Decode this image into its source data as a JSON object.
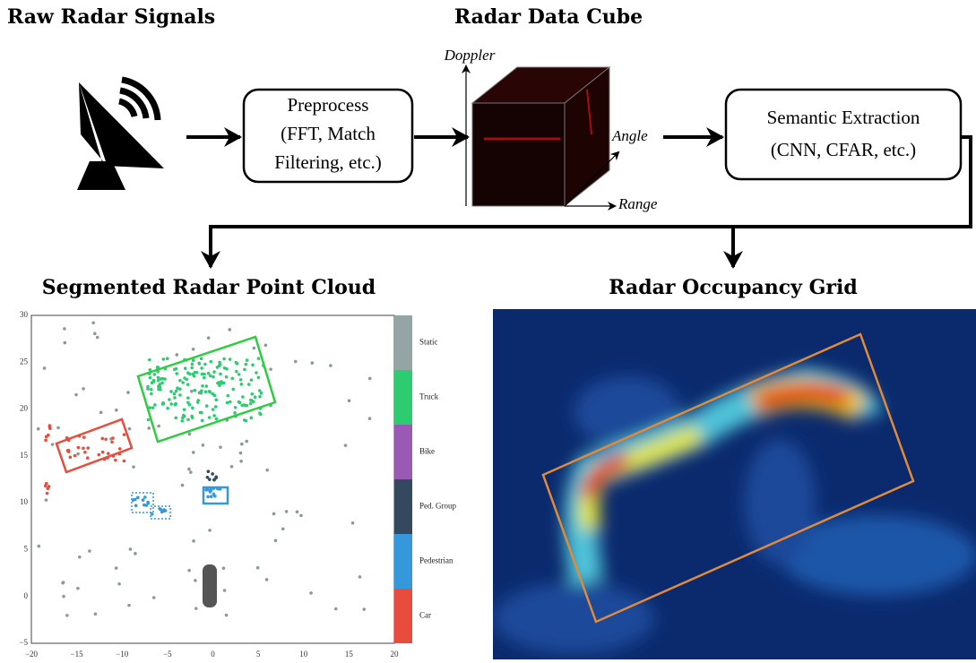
{
  "titles": {
    "raw": "Raw Radar Signals",
    "cube": "Radar Data Cube",
    "pointcloud": "Segmented Radar Point Cloud",
    "grid": "Radar Occupancy Grid"
  },
  "preprocess": {
    "lines": [
      "Preprocess",
      "(FFT, Match",
      "Filtering, etc.)"
    ]
  },
  "semantic": {
    "lines": [
      "Semantic Extraction",
      "(CNN, CFAR, etc.)"
    ]
  },
  "cube_axes": {
    "doppler": "Doppler",
    "angle": "Angle",
    "range": "Range"
  },
  "plot": {
    "yticks": [
      "30",
      "25",
      "20",
      "15",
      "10",
      "5",
      "0",
      "−5"
    ],
    "xticks": [
      "−20",
      "−15",
      "−10",
      "−5",
      "0",
      "5",
      "10",
      "15",
      "20"
    ],
    "classes": [
      "Static",
      "Truck",
      "Bike",
      "Ped. Group",
      "Pedestrian",
      "Car"
    ]
  }
}
